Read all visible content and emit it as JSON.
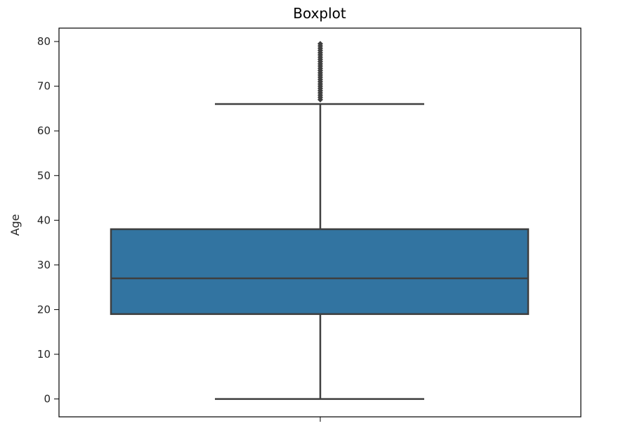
{
  "chart_data": {
    "type": "boxplot",
    "title": "Boxplot",
    "xlabel": "",
    "ylabel": "Age",
    "ylim": [
      -4,
      83
    ],
    "yticks": [
      0,
      10,
      20,
      30,
      40,
      50,
      60,
      70,
      80
    ],
    "grid": false,
    "box": {
      "min": 0,
      "q1": 19,
      "median": 27,
      "q3": 38,
      "max": 66,
      "outliers": [
        67,
        67.5,
        68,
        68.5,
        69,
        69.5,
        70,
        70.5,
        71,
        71.5,
        72,
        72.5,
        73,
        73.5,
        74,
        74.5,
        75,
        75.5,
        76,
        76.5,
        77,
        77.5,
        78,
        78.5,
        79,
        79.5
      ]
    },
    "colors": {
      "box_fill": "#3274a1",
      "line": "#3f3f3f",
      "frame": "#000000",
      "text": "#262626"
    }
  }
}
